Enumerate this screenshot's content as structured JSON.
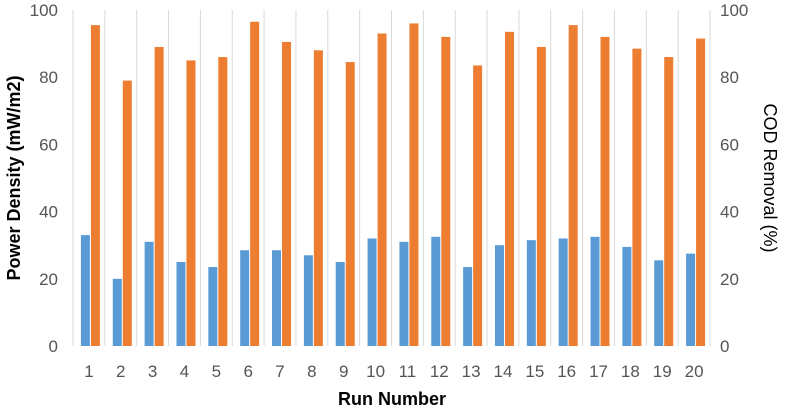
{
  "chart_data": {
    "type": "bar",
    "categories": [
      "1",
      "2",
      "3",
      "4",
      "5",
      "6",
      "7",
      "8",
      "9",
      "10",
      "11",
      "12",
      "13",
      "14",
      "15",
      "16",
      "17",
      "18",
      "19",
      "20"
    ],
    "series": [
      {
        "axis": "left",
        "color": "#5b9bd5",
        "values": [
          33,
          20,
          31,
          25,
          23.5,
          28.5,
          28.5,
          27,
          25,
          32,
          31,
          32.5,
          23.5,
          30,
          31.5,
          32,
          32.5,
          29.5,
          25.5,
          27.5
        ]
      },
      {
        "axis": "right",
        "color": "#ed7d31",
        "values": [
          95.5,
          79,
          89,
          85,
          86,
          96.5,
          90.5,
          88,
          84.5,
          93,
          96,
          92,
          83.5,
          93.5,
          89,
          95.5,
          92,
          88.5,
          86,
          91.5
        ]
      }
    ],
    "title": "",
    "xlabel": "Run Number",
    "ylabel": "Power Density (mW/m2)",
    "y2label": "COD Removal (%)",
    "ylim": [
      0,
      100
    ],
    "y2lim": [
      0,
      100
    ],
    "yticks": [
      "0",
      "20",
      "40",
      "60",
      "80",
      "100"
    ],
    "y2ticks": [
      "0",
      "20",
      "40",
      "60",
      "80",
      "100"
    ],
    "grid": "vertical",
    "legend": "none"
  }
}
